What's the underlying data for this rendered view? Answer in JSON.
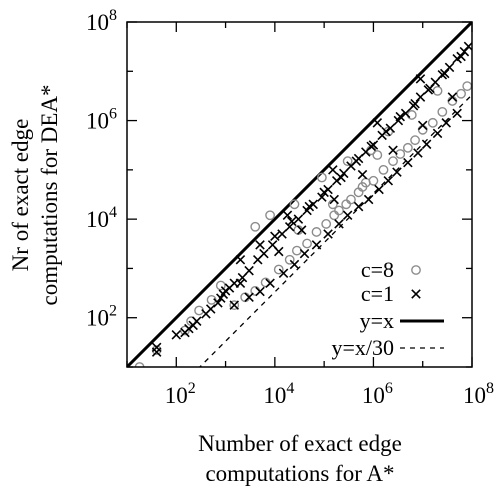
{
  "chart_data": {
    "type": "scatter",
    "xscale": "log",
    "yscale": "log",
    "xlim": [
      10,
      100000000
    ],
    "ylim": [
      10,
      100000000
    ],
    "xlabel": [
      "Number of exact edge",
      "computations for A*"
    ],
    "ylabel": [
      "Nr of exact edge",
      "computations for DEA*"
    ],
    "x_ticks": [
      {
        "value": 100,
        "base": "10",
        "exp": "2"
      },
      {
        "value": 10000,
        "base": "10",
        "exp": "4"
      },
      {
        "value": 1000000,
        "base": "10",
        "exp": "6"
      },
      {
        "value": 100000000,
        "base": "10",
        "exp": "8"
      }
    ],
    "y_ticks": [
      {
        "value": 100,
        "base": "10",
        "exp": "2"
      },
      {
        "value": 10000,
        "base": "10",
        "exp": "4"
      },
      {
        "value": 1000000,
        "base": "10",
        "exp": "6"
      },
      {
        "value": 100000000,
        "base": "10",
        "exp": "8"
      }
    ],
    "legend_position": "bottom-right",
    "series": [
      {
        "name": "c=8",
        "marker": "circle",
        "color": "#8c8c8c",
        "points": [
          [
            18,
            10
          ],
          [
            40,
            22
          ],
          [
            150,
            55
          ],
          [
            200,
            85
          ],
          [
            290,
            140
          ],
          [
            520,
            230
          ],
          [
            800,
            450
          ],
          [
            1500,
            180
          ],
          [
            2500,
            260
          ],
          [
            4000,
            350
          ],
          [
            6500,
            520
          ],
          [
            12000,
            950
          ],
          [
            20000,
            1500
          ],
          [
            28000,
            2300
          ],
          [
            45000,
            3200
          ],
          [
            70000,
            5500
          ],
          [
            110000,
            8000
          ],
          [
            160000,
            12000
          ],
          [
            200000,
            15000
          ],
          [
            280000,
            20000
          ],
          [
            350000,
            25000
          ],
          [
            500000,
            35000
          ],
          [
            700000,
            55000
          ],
          [
            1000000,
            60000
          ],
          [
            1600000,
            100000
          ],
          [
            2500000,
            150000
          ],
          [
            3500000,
            210000
          ],
          [
            5000000,
            280000
          ],
          [
            7000000,
            400000
          ],
          [
            10000000,
            650000
          ],
          [
            16000000,
            900000
          ],
          [
            25000000,
            1500000
          ],
          [
            40000000,
            2500000
          ],
          [
            60000000,
            3500000
          ],
          [
            80000000,
            5000000
          ],
          [
            4000,
            7000
          ],
          [
            8000,
            12000
          ],
          [
            25000,
            20000
          ],
          [
            90000,
            70000
          ],
          [
            300000,
            150000
          ],
          [
            900000,
            250000
          ],
          [
            2000000,
            600000
          ],
          [
            6000000,
            1300000
          ],
          [
            20000000,
            4000000
          ],
          [
            30000,
            6000
          ],
          [
            150000,
            20000
          ],
          [
            600000,
            45000
          ],
          [
            1200000,
            200000
          ]
        ]
      },
      {
        "name": "c=1",
        "marker": "cross",
        "color": "#000000",
        "points": [
          [
            40,
            20
          ],
          [
            40,
            25
          ],
          [
            100,
            45
          ],
          [
            150,
            50
          ],
          [
            180,
            60
          ],
          [
            220,
            70
          ],
          [
            260,
            85
          ],
          [
            400,
            120
          ],
          [
            500,
            150
          ],
          [
            700,
            200
          ],
          [
            900,
            300
          ],
          [
            1000,
            350
          ],
          [
            1200,
            400
          ],
          [
            1500,
            500
          ],
          [
            2200,
            650
          ],
          [
            3000,
            900
          ],
          [
            4500,
            1500
          ],
          [
            6000,
            2000
          ],
          [
            9000,
            3000
          ],
          [
            14000,
            5000
          ],
          [
            20000,
            7000
          ],
          [
            30000,
            10000
          ],
          [
            45000,
            15000
          ],
          [
            60000,
            20000
          ],
          [
            90000,
            28000
          ],
          [
            120000,
            40000
          ],
          [
            180000,
            60000
          ],
          [
            250000,
            85000
          ],
          [
            350000,
            120000
          ],
          [
            500000,
            170000
          ],
          [
            700000,
            230000
          ],
          [
            1000000,
            320000
          ],
          [
            1500000,
            500000
          ],
          [
            2200000,
            700000
          ],
          [
            3200000,
            1000000
          ],
          [
            4500000,
            1400000
          ],
          [
            6500000,
            2000000
          ],
          [
            9000000,
            3000000
          ],
          [
            13000000,
            4200000
          ],
          [
            18000000,
            6000000
          ],
          [
            25000000,
            8500000
          ],
          [
            35000000,
            12000000
          ],
          [
            50000000,
            18000000
          ],
          [
            70000000,
            25000000
          ],
          [
            85000000,
            32000000
          ],
          [
            1500,
            180
          ],
          [
            3000,
            260
          ],
          [
            5000,
            340
          ],
          [
            8000,
            500
          ],
          [
            15000,
            800
          ],
          [
            25000,
            1200
          ],
          [
            40000,
            2000
          ],
          [
            70000,
            3000
          ],
          [
            120000,
            5000
          ],
          [
            200000,
            8000
          ],
          [
            300000,
            12000
          ],
          [
            500000,
            18000
          ],
          [
            800000,
            25000
          ],
          [
            1300000,
            40000
          ],
          [
            2000000,
            60000
          ],
          [
            3000000,
            90000
          ],
          [
            5000000,
            140000
          ],
          [
            8000000,
            220000
          ],
          [
            12000000,
            330000
          ],
          [
            20000000,
            550000
          ],
          [
            30000000,
            900000
          ],
          [
            50000000,
            1400000
          ],
          [
            5000,
            3000
          ],
          [
            10000,
            4500
          ],
          [
            22000,
            9000
          ],
          [
            50000,
            18000
          ],
          [
            100000,
            35000
          ],
          [
            220000,
            70000
          ],
          [
            450000,
            150000
          ],
          [
            900000,
            300000
          ],
          [
            1800000,
            600000
          ],
          [
            3500000,
            1200000
          ],
          [
            7000000,
            2200000
          ],
          [
            14000000,
            4500000
          ],
          [
            28000000,
            9000000
          ],
          [
            60000000,
            20000000
          ],
          [
            800,
            250
          ],
          [
            2000,
            500
          ],
          [
            12000,
            2200
          ],
          [
            35000,
            6000
          ],
          [
            160000,
            25000
          ],
          [
            600000,
            80000
          ],
          [
            2500000,
            250000
          ],
          [
            10000000,
            800000
          ],
          [
            40000000,
            3000000
          ],
          [
            2000,
            1500
          ],
          [
            18000,
            12000
          ],
          [
            150000,
            100000
          ],
          [
            1200000,
            900000
          ],
          [
            9000000,
            7000000
          ]
        ]
      },
      {
        "name": "y=x",
        "style": "solid",
        "color": "#000000",
        "k": 1
      },
      {
        "name": "y=x/30",
        "style": "dashed",
        "color": "#000000",
        "k": 30
      }
    ]
  }
}
